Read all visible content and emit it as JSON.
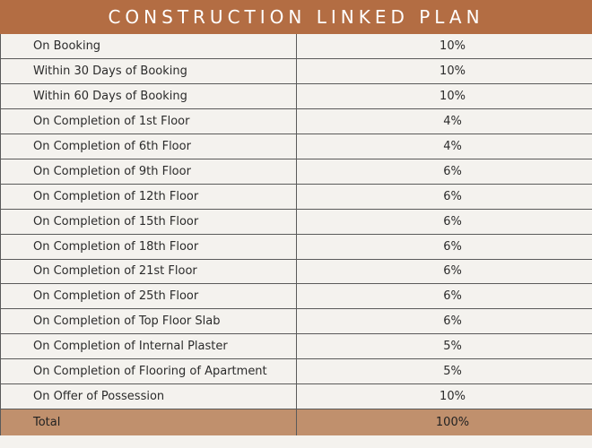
{
  "title": "CONSTRUCTION LINKED PLAN",
  "rows": [
    {
      "stage": "On Booking",
      "percent": "10%"
    },
    {
      "stage": "Within 30 Days of Booking",
      "percent": "10%"
    },
    {
      "stage": "Within 60 Days of Booking",
      "percent": "10%"
    },
    {
      "stage": "On Completion of 1st Floor",
      "percent": "4%"
    },
    {
      "stage": "On Completion of 6th Floor",
      "percent": "4%"
    },
    {
      "stage": "On Completion of 9th Floor",
      "percent": "6%"
    },
    {
      "stage": "On Completion of 12th Floor",
      "percent": "6%"
    },
    {
      "stage": "On Completion of 15th Floor",
      "percent": "6%"
    },
    {
      "stage": "On Completion of 18th Floor",
      "percent": "6%"
    },
    {
      "stage": "On Completion of 21st Floor",
      "percent": "6%"
    },
    {
      "stage": "On Completion of 25th Floor",
      "percent": "6%"
    },
    {
      "stage": "On Completion of Top Floor Slab",
      "percent": "6%"
    },
    {
      "stage": "On Completion of Internal Plaster",
      "percent": "5%"
    },
    {
      "stage": "On Completion of Flooring of Apartment",
      "percent": "5%"
    },
    {
      "stage": "On Offer of Possession",
      "percent": "10%"
    }
  ],
  "total": {
    "stage": "Total",
    "percent": "100%"
  },
  "colors": {
    "header_bg": "#b36d43",
    "total_bg": "#c0906d",
    "page_bg": "#f4f2ee"
  }
}
